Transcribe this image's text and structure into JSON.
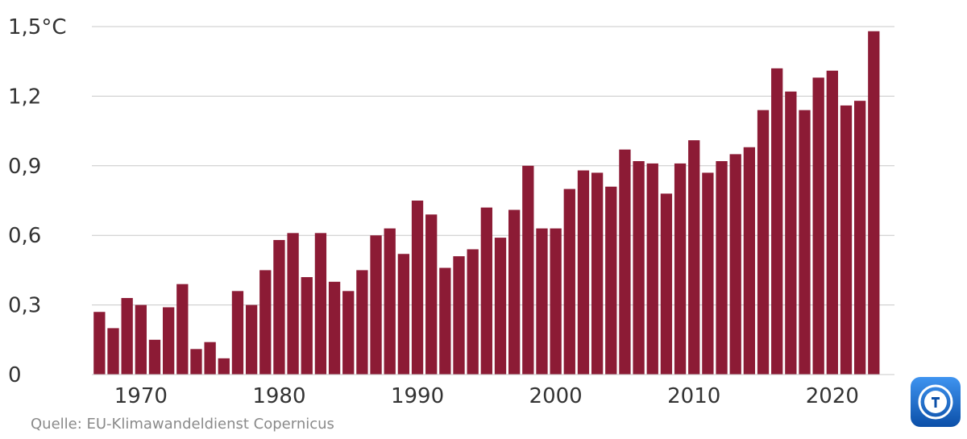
{
  "chart_data": {
    "type": "bar",
    "x": [
      1967,
      1968,
      1969,
      1970,
      1971,
      1972,
      1973,
      1974,
      1975,
      1976,
      1977,
      1978,
      1979,
      1980,
      1981,
      1982,
      1983,
      1984,
      1985,
      1986,
      1987,
      1988,
      1989,
      1990,
      1991,
      1992,
      1993,
      1994,
      1995,
      1996,
      1997,
      1998,
      1999,
      2000,
      2001,
      2002,
      2003,
      2004,
      2005,
      2006,
      2007,
      2008,
      2009,
      2010,
      2011,
      2012,
      2013,
      2014,
      2015,
      2016,
      2017,
      2018,
      2019,
      2020,
      2021,
      2022,
      2023
    ],
    "values": [
      0.27,
      0.2,
      0.33,
      0.3,
      0.15,
      0.29,
      0.39,
      0.11,
      0.14,
      0.07,
      0.36,
      0.3,
      0.45,
      0.58,
      0.61,
      0.42,
      0.61,
      0.4,
      0.36,
      0.45,
      0.6,
      0.63,
      0.52,
      0.75,
      0.69,
      0.46,
      0.51,
      0.54,
      0.72,
      0.59,
      0.71,
      0.9,
      0.63,
      0.63,
      0.8,
      0.88,
      0.87,
      0.81,
      0.97,
      0.92,
      0.91,
      0.78,
      0.91,
      1.01,
      0.87,
      0.92,
      0.95,
      0.98,
      1.14,
      1.32,
      1.22,
      1.14,
      1.28,
      1.31,
      1.16,
      1.18,
      1.48
    ],
    "ylim": [
      0,
      1.5
    ],
    "yticks": [
      0,
      0.3,
      0.6,
      0.9,
      1.2,
      1.5
    ],
    "ytick_labels": [
      "0",
      "0,3",
      "0,6",
      "0,9",
      "1,2",
      "1,5°C"
    ],
    "xticks": [
      1970,
      1980,
      1990,
      2000,
      2010,
      2020
    ],
    "xtick_labels": [
      "1970",
      "1980",
      "1990",
      "2000",
      "2010",
      "2020"
    ],
    "bar_color": "#8c1b35",
    "grid": true,
    "source": "Quelle: EU-Klimawandeldienst Copernicus"
  },
  "logo": {
    "icon": "broadcaster-logo-icon",
    "color": "#1a6fd1"
  }
}
